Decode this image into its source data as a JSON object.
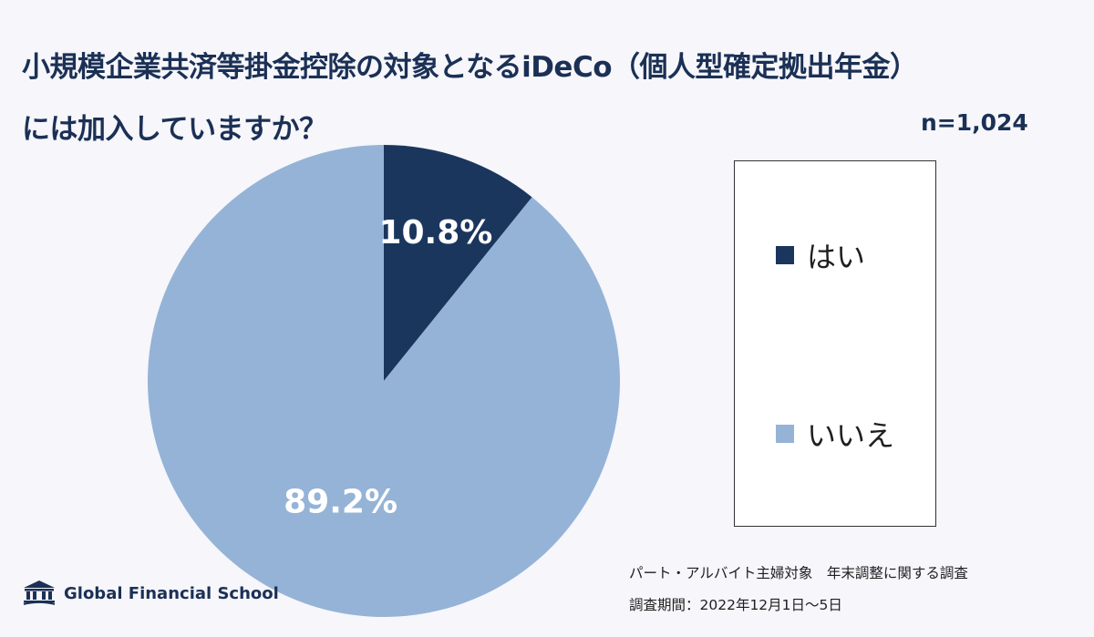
{
  "title": {
    "line1": "小規模企業共済等掛金控除の対象となるiDeCo（個人型確定拠出年金）",
    "line2": "には加入していますか？"
  },
  "sample_size": "n=1,024",
  "chart_data": {
    "type": "pie",
    "categories": [
      "はい",
      "いいえ"
    ],
    "values": [
      10.8,
      89.2
    ],
    "labels": [
      "10.8%",
      "89.2%"
    ],
    "colors": [
      "#1b365d",
      "#95b3d7"
    ],
    "legend": "right"
  },
  "legend": {
    "items": [
      {
        "label": "はい",
        "color": "#1b365d"
      },
      {
        "label": "いいえ",
        "color": "#95b3d7"
      }
    ]
  },
  "footnote": {
    "line1": "パート・アルバイト主婦対象　年末調整に関する調査",
    "line2": "調査期間：2022年12月1日～5日"
  },
  "logo": {
    "text": "Global Financial School"
  }
}
